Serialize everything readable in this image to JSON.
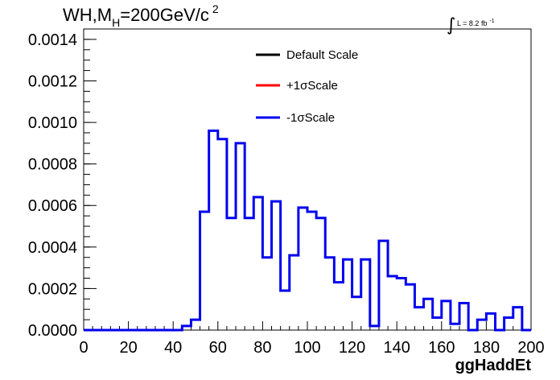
{
  "chart_data": {
    "type": "line",
    "step": true,
    "title": {
      "main": "WH,M",
      "sub": "H",
      "rest": "=200GeV/c",
      "sup": "2"
    },
    "luminosity": {
      "integral_sign": "∫",
      "text": "L = 8.2 fb",
      "sup": "-1"
    },
    "xlabel": "ggHaddEt",
    "ylabel": "",
    "xlim": [
      0,
      200
    ],
    "ylim": [
      0,
      0.00145
    ],
    "x_ticks": [
      "0",
      "20",
      "40",
      "60",
      "80",
      "100",
      "120",
      "140",
      "160",
      "180",
      "200"
    ],
    "y_ticks": [
      "0.0000",
      "0.0002",
      "0.0004",
      "0.0006",
      "0.0008",
      "0.0010",
      "0.0012",
      "0.0014"
    ],
    "bin_width": 4,
    "bin_edges_start": 0,
    "bin_values": [
      0,
      0,
      0,
      0,
      0,
      0,
      0,
      0,
      0,
      0,
      0,
      2e-05,
      5e-05,
      0.00057,
      0.00096,
      0.00092,
      0.00054,
      0.0009,
      0.00054,
      0.00064,
      0.00035,
      0.00062,
      0.00019,
      0.00036,
      0.00059,
      0.00057,
      0.00054,
      0.00035,
      0.00023,
      0.00034,
      0.00016,
      0.00034,
      2e-05,
      0.00043,
      0.00026,
      0.00025,
      0.00022,
      0.00011,
      0.00015,
      6e-05,
      0.00014,
      3e-05,
      0.00013,
      0.0,
      5e-05,
      8e-05,
      0.0,
      6e-05,
      0.00011,
      0.0
    ],
    "series": [
      {
        "name": "Default Scale",
        "color": "#000000",
        "draw": false
      },
      {
        "name": "+1σScale",
        "color": "#ff0000",
        "draw": false
      },
      {
        "name": "-1σScale",
        "color": "#0000ee",
        "draw": true
      }
    ],
    "legend_position": "top-center",
    "grid": false
  }
}
